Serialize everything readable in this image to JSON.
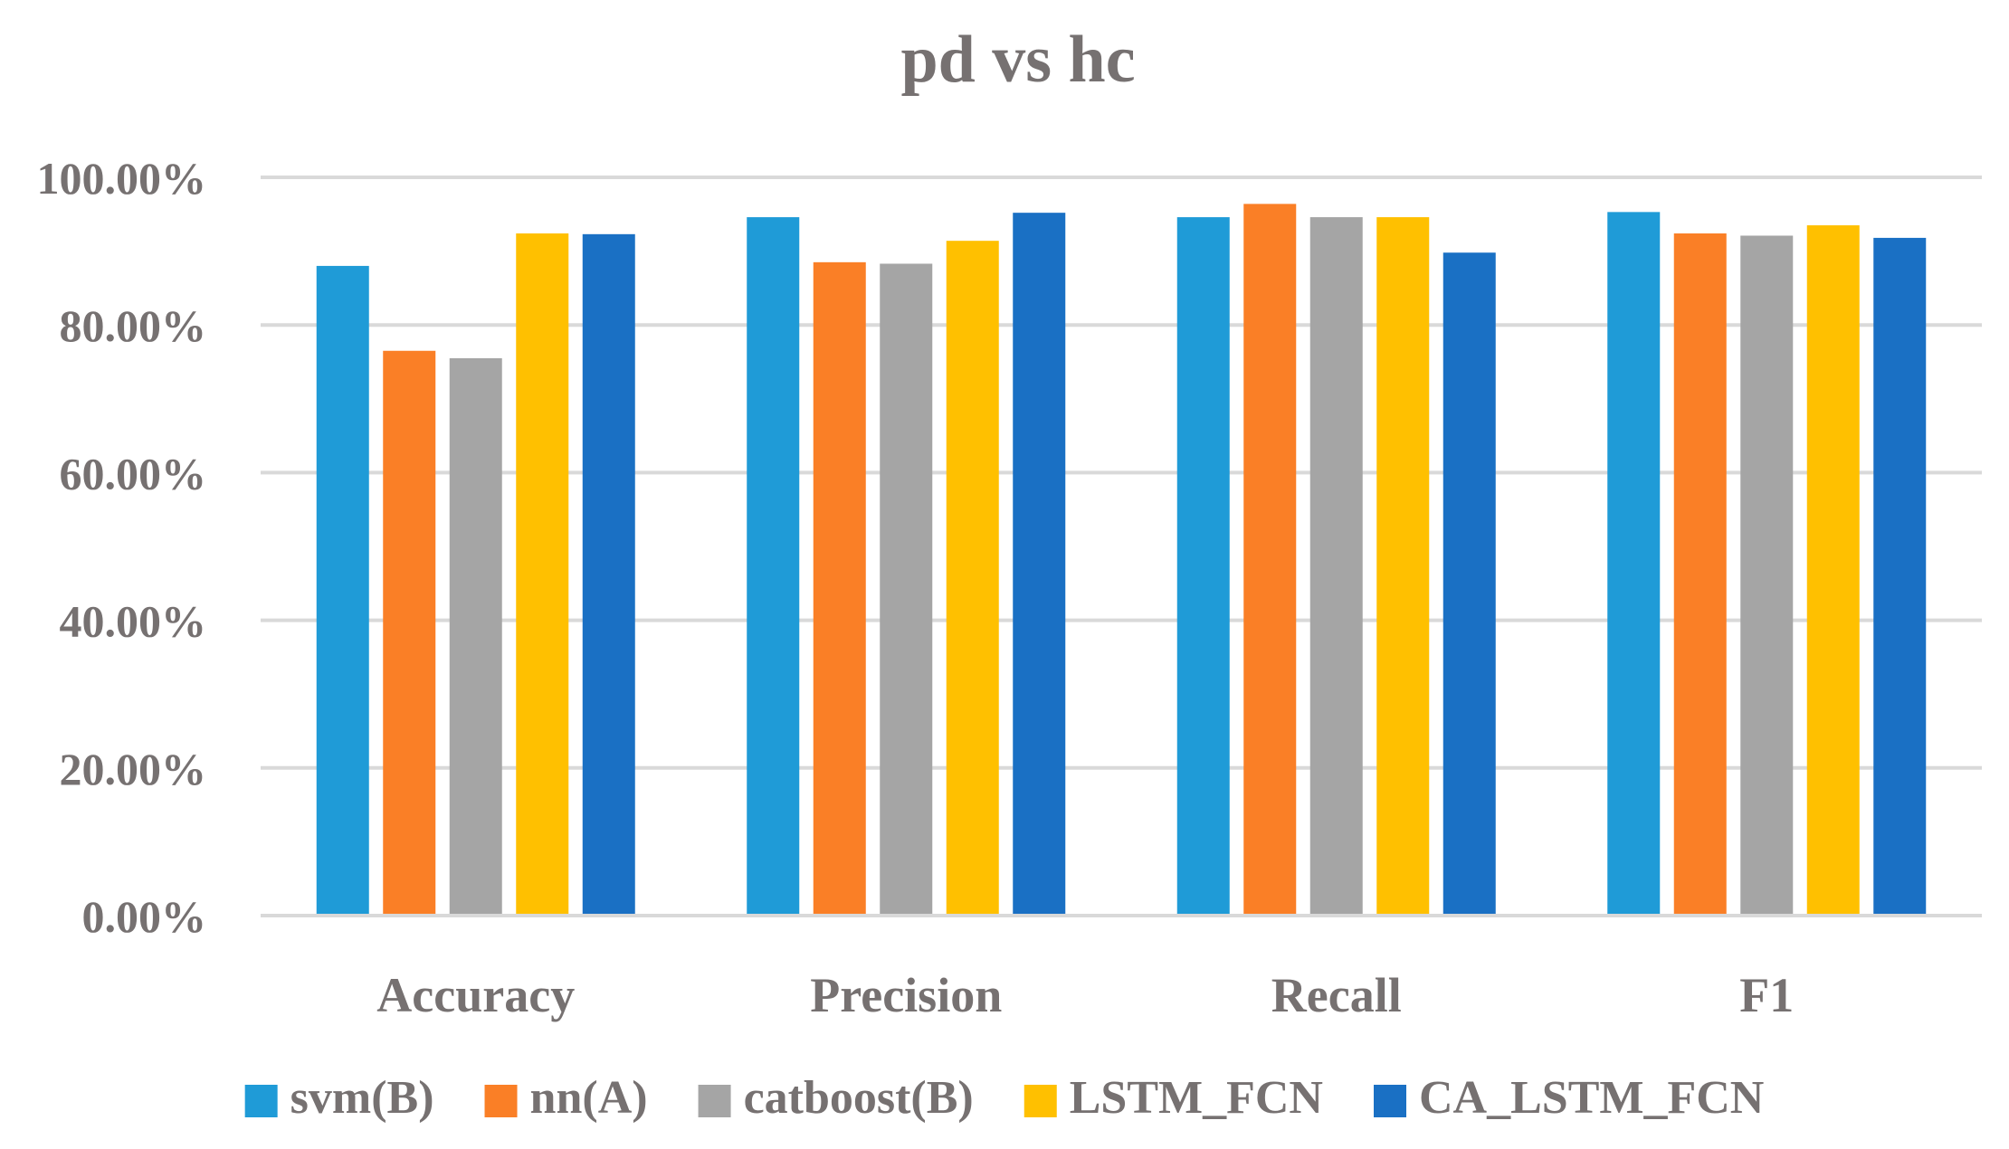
{
  "chart_data": {
    "type": "bar",
    "title": "pd vs hc",
    "xlabel": "",
    "ylabel": "",
    "categories": [
      "Accuracy",
      "Precision",
      "Recall",
      "F1"
    ],
    "ylim": [
      0,
      100
    ],
    "yticks": [
      "0.00%",
      "20.00%",
      "40.00%",
      "60.00%",
      "80.00%",
      "100.00%"
    ],
    "grid": true,
    "legend_position": "bottom",
    "series": [
      {
        "name": "svm(B)",
        "color": "#1F9BD7",
        "values": [
          88.0,
          94.6,
          94.6,
          95.3
        ]
      },
      {
        "name": "nn(A)",
        "color": "#FA7F26",
        "values": [
          76.5,
          88.5,
          96.4,
          92.4
        ]
      },
      {
        "name": "catboost(B)",
        "color": "#A5A5A5",
        "values": [
          75.5,
          88.3,
          94.6,
          92.1
        ]
      },
      {
        "name": "LSTM_FCN",
        "color": "#FFC000",
        "values": [
          92.4,
          91.4,
          94.6,
          93.5
        ]
      },
      {
        "name": "CA_LSTM_FCN",
        "color": "#1A70C4",
        "values": [
          92.3,
          95.2,
          89.8,
          91.8
        ]
      }
    ]
  }
}
